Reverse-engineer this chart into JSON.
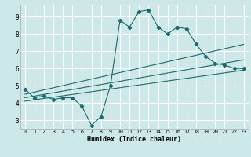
{
  "xlabel": "Humidex (Indice chaleur)",
  "xlim": [
    -0.5,
    23.5
  ],
  "ylim": [
    2.5,
    9.7
  ],
  "xticks": [
    0,
    1,
    2,
    3,
    4,
    5,
    6,
    7,
    8,
    9,
    10,
    11,
    12,
    13,
    14,
    15,
    16,
    17,
    18,
    19,
    20,
    21,
    22,
    23
  ],
  "yticks": [
    3,
    4,
    5,
    6,
    7,
    8,
    9
  ],
  "bg_color": "#cde8e8",
  "grid_color": "#ffffff",
  "line_color": "#1a6b6b",
  "line1_x": [
    0,
    1,
    2,
    3,
    4,
    5,
    6,
    7,
    8,
    9,
    10,
    11,
    12,
    13,
    14,
    15,
    16,
    17,
    18,
    19,
    20,
    21,
    22,
    23
  ],
  "line1_y": [
    4.8,
    4.3,
    4.4,
    4.2,
    4.3,
    4.3,
    3.8,
    2.7,
    3.2,
    5.0,
    8.8,
    8.4,
    9.3,
    9.4,
    8.4,
    8.0,
    8.4,
    8.3,
    7.4,
    6.7,
    6.3,
    6.2,
    6.0,
    6.0
  ],
  "line2_x": [
    0,
    23
  ],
  "line2_y": [
    4.5,
    7.4
  ],
  "line3_x": [
    0,
    23
  ],
  "line3_y": [
    4.3,
    6.5
  ],
  "line4_x": [
    0,
    23
  ],
  "line4_y": [
    4.1,
    5.9
  ]
}
